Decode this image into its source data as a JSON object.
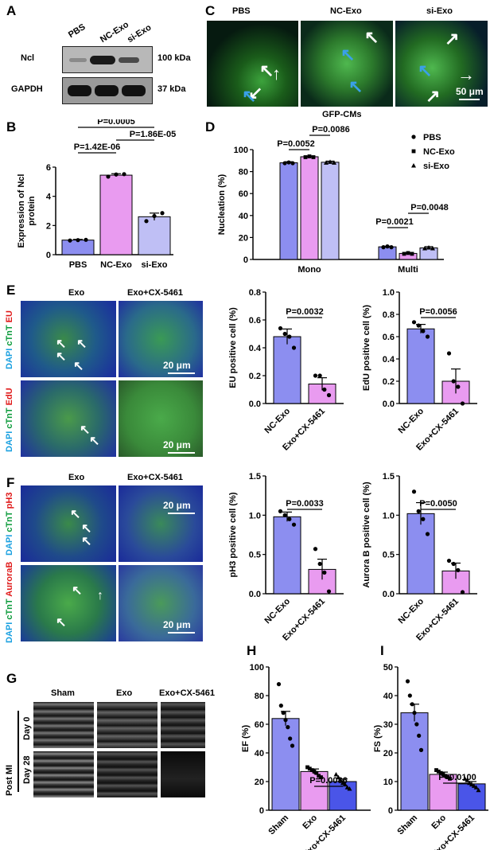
{
  "panels": {
    "A": "A",
    "B": "B",
    "C": "C",
    "D": "D",
    "E": "E",
    "F": "F",
    "G": "G",
    "H": "H",
    "I": "I"
  },
  "western": {
    "lanes": [
      "PBS",
      "NC-Exo",
      "si-Exo"
    ],
    "rows": [
      {
        "label": "Ncl",
        "kda": "100 kDa"
      },
      {
        "label": "GAPDH",
        "kda": "37 kDa"
      }
    ]
  },
  "panelC": {
    "headers": [
      "PBS",
      "NC-Exo",
      "si-Exo"
    ],
    "subtitle": "GFP-CMs",
    "scale": "50 μm"
  },
  "panelE": {
    "headers": [
      "Exo",
      "Exo+CX-5461"
    ],
    "row1_label": [
      "DAPI",
      "cTnT",
      "EU"
    ],
    "row2_label": [
      "DAPI",
      "cTnT",
      "EdU"
    ],
    "scale": "20 μm"
  },
  "panelF": {
    "headers": [
      "Exo",
      "Exo+CX-5461"
    ],
    "row1_label": [
      "DAPI",
      "cTnT",
      "pH3"
    ],
    "row2_label": [
      "DAPI",
      "cTnT",
      "AuroraB"
    ],
    "scale": "20 μm"
  },
  "panelG": {
    "headers": [
      "Sham",
      "Exo",
      "Exo+CX-5461"
    ],
    "side": "Post MI",
    "rows": [
      "Day 0",
      "Day 28"
    ]
  },
  "colors": {
    "c1": "#8c8ef0",
    "c2": "#e99bf0",
    "c3": "#bfbff5",
    "c4": "#4a55e8"
  },
  "chart_data": [
    {
      "id": "B",
      "type": "bar",
      "categories": [
        "PBS",
        "NC-Exo",
        "si-Exo"
      ],
      "values": [
        1.0,
        5.45,
        2.6
      ],
      "errors": [
        0.05,
        0.1,
        0.25
      ],
      "points": [
        [
          0.97,
          1.0,
          1.02
        ],
        [
          5.35,
          5.5,
          5.52
        ],
        [
          2.3,
          2.65,
          2.85
        ]
      ],
      "ylabel": "Expression of Ncl protein",
      "ylim": [
        0,
        6
      ],
      "ticks": [
        0,
        2,
        4,
        6
      ],
      "brackets": [
        {
          "from": 0,
          "to": 1,
          "label": "P=1.42E-06"
        },
        {
          "from": 1,
          "to": 2,
          "label": "P=1.86E-05"
        },
        {
          "from": 0,
          "to": 2,
          "label": "P=0.0005"
        }
      ]
    },
    {
      "id": "D",
      "type": "bar",
      "groups": [
        "Mono",
        "Multi"
      ],
      "series": [
        {
          "name": "PBS",
          "values": [
            88,
            11.5
          ],
          "errors": [
            1,
            0.5
          ]
        },
        {
          "name": "NC-Exo",
          "values": [
            93.5,
            5.5
          ],
          "errors": [
            0.5,
            0.5
          ]
        },
        {
          "name": "si-Exo",
          "values": [
            88.5,
            10.5
          ],
          "errors": [
            1,
            1.2
          ]
        }
      ],
      "ylabel": "Nucleation (%)",
      "ylim": [
        0,
        100
      ],
      "ticks": [
        0,
        20,
        40,
        60,
        80,
        100
      ],
      "brackets": [
        {
          "group": 0,
          "from": 0,
          "to": 1,
          "label": "P=0.0052"
        },
        {
          "group": 0,
          "from": 1,
          "to": 2,
          "label": "P=0.0086"
        },
        {
          "group": 1,
          "from": 0,
          "to": 1,
          "label": "P=0.0021"
        },
        {
          "group": 1,
          "from": 1,
          "to": 2,
          "label": "P=0.0048"
        }
      ]
    },
    {
      "id": "E1",
      "type": "bar",
      "categories": [
        "NC-Exo",
        "Exo+CX-5461"
      ],
      "values": [
        0.48,
        0.14
      ],
      "errors": [
        0.055,
        0.045
      ],
      "points": [
        [
          0.54,
          0.5,
          0.48,
          0.4
        ],
        [
          0.2,
          0.2,
          0.1,
          0.06
        ]
      ],
      "ylabel": "EU positive cell (%)",
      "ylim": [
        0,
        0.8
      ],
      "ticks": [
        0,
        0.2,
        0.4,
        0.6,
        0.8
      ],
      "tickfmt": 1,
      "brackets": [
        {
          "from": 0,
          "to": 1,
          "label": "P=0.0032"
        }
      ]
    },
    {
      "id": "E2",
      "type": "bar",
      "categories": [
        "NC-Exo",
        "Exo+CX-5461"
      ],
      "values": [
        0.67,
        0.2
      ],
      "errors": [
        0.04,
        0.11
      ],
      "points": [
        [
          0.73,
          0.7,
          0.65,
          0.6
        ],
        [
          0.45,
          0.2,
          0.15,
          0.0
        ]
      ],
      "ylabel": "EdU positive cell (%)",
      "ylim": [
        0,
        1.0
      ],
      "ticks": [
        0,
        0.2,
        0.4,
        0.6,
        0.8,
        1.0
      ],
      "tickfmt": 1,
      "brackets": [
        {
          "from": 0,
          "to": 1,
          "label": "P=0.0056"
        }
      ]
    },
    {
      "id": "F1",
      "type": "bar",
      "categories": [
        "NC-Exo",
        "Exo+CX-5461"
      ],
      "values": [
        0.98,
        0.31
      ],
      "errors": [
        0.06,
        0.13
      ],
      "points": [
        [
          1.05,
          1.0,
          0.95,
          0.88
        ],
        [
          0.57,
          0.38,
          0.27,
          0.03
        ]
      ],
      "ylabel": "pH3 positive cell (%)",
      "ylim": [
        0,
        1.5
      ],
      "ticks": [
        0,
        0.5,
        1.0,
        1.5
      ],
      "tickfmt": 1,
      "brackets": [
        {
          "from": 0,
          "to": 1,
          "label": "P=0.0033"
        }
      ]
    },
    {
      "id": "F2",
      "type": "bar",
      "categories": [
        "NC-Exo",
        "Exo+CX-5461"
      ],
      "values": [
        1.02,
        0.29
      ],
      "errors": [
        0.14,
        0.1
      ],
      "points": [
        [
          1.3,
          1.05,
          0.95,
          0.76
        ],
        [
          0.42,
          0.38,
          0.3,
          0.02
        ]
      ],
      "ylabel": "Aurora B positive cell (%)",
      "ylim": [
        0,
        1.5
      ],
      "ticks": [
        0,
        0.5,
        1.0,
        1.5
      ],
      "tickfmt": 1,
      "brackets": [
        {
          "from": 0,
          "to": 1,
          "label": "P=0.0050"
        }
      ]
    },
    {
      "id": "H",
      "type": "bar",
      "categories": [
        "Sham",
        "Exo",
        "Exo+CX-5461"
      ],
      "values": [
        64,
        27,
        20
      ],
      "errors": [
        5,
        1.8,
        1.8
      ],
      "points": [
        [
          88,
          73,
          68,
          63,
          58,
          50,
          45
        ],
        [
          30,
          29,
          28,
          27,
          26,
          24,
          23
        ],
        [
          25,
          23,
          21,
          19,
          18,
          16,
          15
        ]
      ],
      "ylabel": "EF (%)",
      "ylim": [
        0,
        100
      ],
      "ticks": [
        0,
        20,
        40,
        60,
        80,
        100
      ],
      "brackets": [
        {
          "from": 1,
          "to": 2,
          "label": "P=0.0086"
        }
      ]
    },
    {
      "id": "I",
      "type": "bar",
      "categories": [
        "Sham",
        "Exo",
        "Exo+CX-5461"
      ],
      "values": [
        34,
        12.5,
        9.2
      ],
      "errors": [
        3,
        0.8,
        0.8
      ],
      "points": [
        [
          45,
          40,
          37,
          34,
          30,
          26,
          21
        ],
        [
          14,
          13.5,
          13,
          12.5,
          12,
          11.5,
          11
        ],
        [
          11,
          10.5,
          9.5,
          9,
          8.5,
          8,
          7
        ]
      ],
      "ylabel": "FS (%)",
      "ylim": [
        0,
        50
      ],
      "ticks": [
        0,
        10,
        20,
        30,
        40,
        50
      ],
      "brackets": [
        {
          "from": 1,
          "to": 2,
          "label": "P=0.0100"
        }
      ]
    }
  ]
}
